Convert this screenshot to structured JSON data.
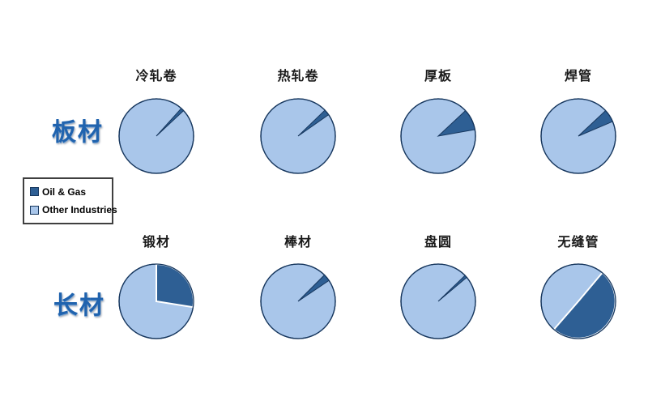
{
  "page": {
    "background": "#ffffff"
  },
  "row_labels": [
    {
      "text": "板材"
    },
    {
      "text": "长材"
    }
  ],
  "legend": {
    "items": [
      {
        "label": "Oil & Gas",
        "color": "#2E5F94"
      },
      {
        "label": "Other Industries",
        "color": "#A9C6EA"
      }
    ]
  },
  "chart_data": {
    "type": "pie",
    "legend": [
      "Oil & Gas",
      "Other Industries"
    ],
    "legend_position": "middle-left",
    "colors": {
      "oil_gas": "#2E5F94",
      "other_industries": "#A9C6EA",
      "outline": "#17375E"
    },
    "groups": [
      {
        "label": "板材",
        "charts": [
          "冷轧卷",
          "热轧卷",
          "厚板",
          "焊管"
        ]
      },
      {
        "label": "长材",
        "charts": [
          "锻材",
          "棒材",
          "盘圆",
          "无缝管"
        ]
      }
    ],
    "charts": [
      {
        "title": "冷轧卷",
        "group": "板材",
        "series": [
          {
            "name": "Oil & Gas",
            "pct": 1
          },
          {
            "name": "Other Industries",
            "pct": 99
          }
        ],
        "start_deg": 42,
        "end_deg": 47,
        "white_gap": false
      },
      {
        "title": "热轧卷",
        "group": "板材",
        "series": [
          {
            "name": "Oil & Gas",
            "pct": 2.5
          },
          {
            "name": "Other Industries",
            "pct": 97.5
          }
        ],
        "start_deg": 46,
        "end_deg": 55,
        "white_gap": false
      },
      {
        "title": "厚板",
        "group": "板材",
        "series": [
          {
            "name": "Oil & Gas",
            "pct": 9
          },
          {
            "name": "Other Industries",
            "pct": 91
          }
        ],
        "start_deg": 47,
        "end_deg": 80,
        "white_gap": false
      },
      {
        "title": "焊管",
        "group": "板材",
        "series": [
          {
            "name": "Oil & Gas",
            "pct": 5.5
          },
          {
            "name": "Other Industries",
            "pct": 94.5
          }
        ],
        "start_deg": 47,
        "end_deg": 67,
        "white_gap": false
      },
      {
        "title": "锻材",
        "group": "长材",
        "series": [
          {
            "name": "Oil & Gas",
            "pct": 27.5
          },
          {
            "name": "Other Industries",
            "pct": 72.5
          }
        ],
        "start_deg": 0,
        "end_deg": 99,
        "white_gap": true
      },
      {
        "title": "棒材",
        "group": "长材",
        "series": [
          {
            "name": "Oil & Gas",
            "pct": 3
          },
          {
            "name": "Other Industries",
            "pct": 97
          }
        ],
        "start_deg": 45,
        "end_deg": 56,
        "white_gap": false
      },
      {
        "title": "盘圆",
        "group": "长材",
        "series": [
          {
            "name": "Oil & Gas",
            "pct": 1
          },
          {
            "name": "Other Industries",
            "pct": 99
          }
        ],
        "start_deg": 46,
        "end_deg": 50,
        "white_gap": false
      },
      {
        "title": "无缝管",
        "group": "长材",
        "series": [
          {
            "name": "Oil & Gas",
            "pct": 50
          },
          {
            "name": "Other Industries",
            "pct": 50
          }
        ],
        "start_deg": 40,
        "end_deg": 221,
        "white_gap": true
      }
    ]
  }
}
